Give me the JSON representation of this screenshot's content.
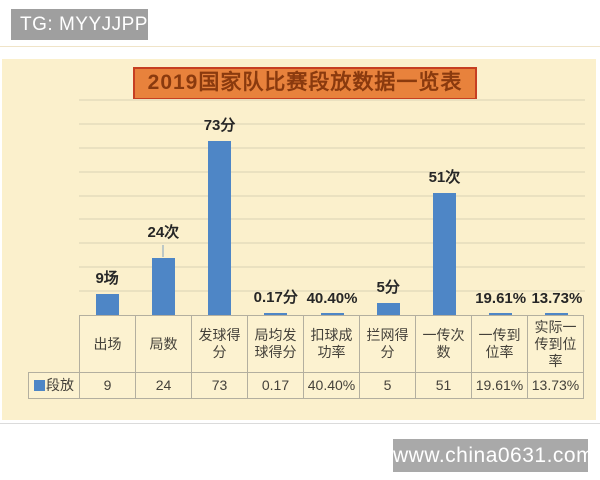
{
  "tag": {
    "label": "TG: MYYJJPP",
    "bg": "#9f9f9f",
    "text_color": "#ffffff"
  },
  "title": {
    "text": "2019国家队比赛段放数据一览表",
    "bg": "#e8823c",
    "border_color": "#c63f21",
    "text_color": "#8a3a0e"
  },
  "watermark": {
    "text": "www.china0631.com",
    "bg": "#a9a9a9",
    "text_color": "#ffffff"
  },
  "chart_data": {
    "type": "bar",
    "title": "2019国家队比赛段放数据一览表",
    "categories": [
      "出场",
      "局数",
      "发球得分",
      "局均发球得分",
      "扣球成功率",
      "拦网得分",
      "一传次数",
      "一传到位率",
      "实际一传到位率"
    ],
    "series": [
      {
        "name": "段放",
        "values": [
          9,
          24,
          73,
          0.17,
          0.404,
          5,
          51,
          0.1961,
          0.1373
        ]
      }
    ],
    "data_labels": [
      "9场",
      "24次",
      "73分",
      "0.17分",
      "40.40%",
      "5分",
      "51次",
      "19.61%",
      "13.73%"
    ],
    "table_row_label": "段放",
    "table_values": [
      "9",
      "24",
      "73",
      "0.17",
      "40.40%",
      "5",
      "51",
      "19.61%",
      "13.73%"
    ],
    "ylim": [
      0,
      90
    ],
    "gridline_step": 10,
    "y_axis_labels_visible": false,
    "grid": "horizontal only",
    "legend_position": "bottom-left table row header",
    "bar_color": "#4e86c6",
    "plot_bg": "#fbf0cc",
    "gridline_color": "#eae1c0",
    "label_leader_index": 1
  }
}
